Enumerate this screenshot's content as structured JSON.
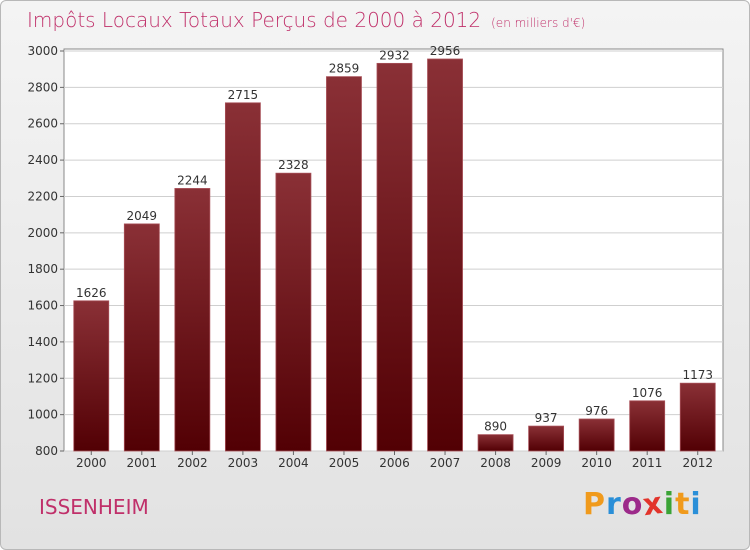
{
  "title": "Impôts Locaux Totaux Perçus de 2000 à 2012",
  "subtitle": "(en milliers d'€)",
  "city": "ISSENHEIM",
  "logo": {
    "letters": [
      "P",
      "r",
      "o",
      "x",
      "i",
      "t",
      "i"
    ],
    "colors": [
      "#f09a1c",
      "#2a8fd8",
      "#9c2a8a",
      "#e2342b",
      "#3aa336",
      "#f09a1c",
      "#2a8fd8"
    ]
  },
  "colors": {
    "bar_top": "#8a3036",
    "bar_bottom": "#520004",
    "accent": "#c0306a"
  },
  "chart_data": {
    "type": "bar",
    "categories": [
      "2000",
      "2001",
      "2002",
      "2003",
      "2004",
      "2005",
      "2006",
      "2007",
      "2008",
      "2009",
      "2010",
      "2011",
      "2012"
    ],
    "values": [
      1626,
      2049,
      2244,
      2715,
      2328,
      2859,
      2932,
      2956,
      890,
      937,
      976,
      1076,
      1173
    ],
    "title": "Impôts Locaux Totaux Perçus de 2000 à 2012",
    "subtitle": "(en milliers d'€)",
    "ylim": [
      800,
      3000
    ],
    "yticks": [
      800,
      1000,
      1200,
      1400,
      1600,
      1800,
      2000,
      2200,
      2400,
      2600,
      2800,
      3000
    ],
    "grid": true,
    "data_labels": true
  }
}
